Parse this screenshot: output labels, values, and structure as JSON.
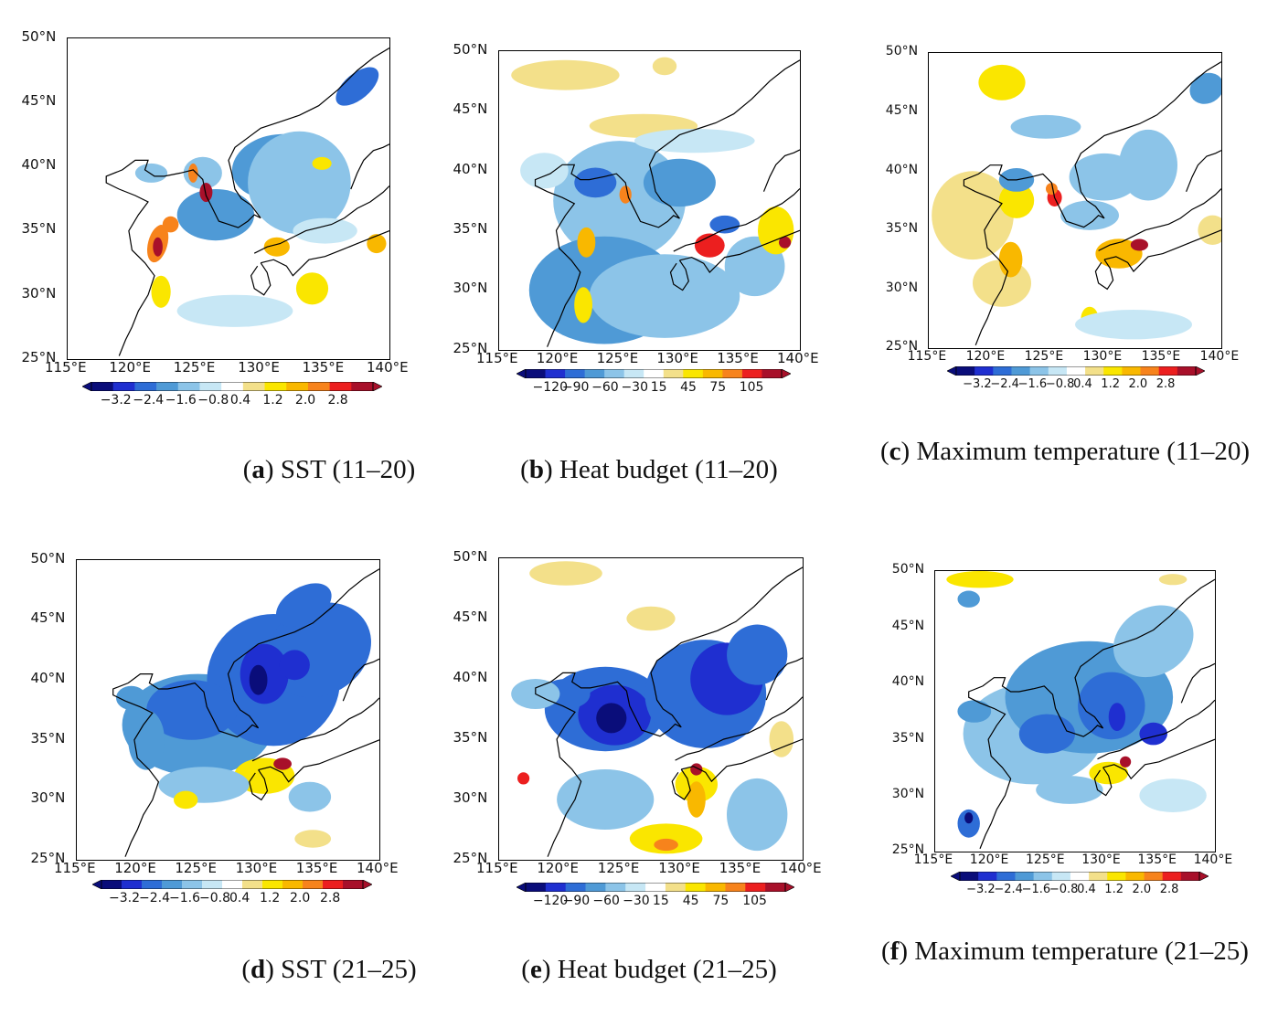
{
  "figure": {
    "panels": [
      {
        "id": "a",
        "caption_letter": "a",
        "caption_text": "SST (11–20)",
        "lat_labels": [
          "50°N",
          "45°N",
          "40°N",
          "35°N",
          "30°N",
          "25°N"
        ],
        "lon_labels": [
          "115°E",
          "120°E",
          "125°E",
          "130°E",
          "135°E",
          "140°E"
        ],
        "colorbar_labels": [
          "−3.2",
          "−2.4",
          "−1.6",
          "−0.8",
          "0.4",
          "1.2",
          "2.0",
          "2.8"
        ]
      },
      {
        "id": "b",
        "caption_letter": "b",
        "caption_text": "Heat budget (11–20)",
        "lat_labels": [
          "50°N",
          "45°N",
          "40°N",
          "35°N",
          "30°N",
          "25°N"
        ],
        "lon_labels": [
          "115°E",
          "120°E",
          "125°E",
          "130°E",
          "135°E",
          "140°E"
        ],
        "colorbar_labels": [
          "−120",
          "−90",
          "−60",
          "−30",
          "15",
          "45",
          "75",
          "105"
        ]
      },
      {
        "id": "c",
        "caption_letter": "c",
        "caption_text": "Maximum temperature (11–20)",
        "lat_labels": [
          "50°N",
          "45°N",
          "40°N",
          "35°N",
          "30°N",
          "25°N"
        ],
        "lon_labels": [
          "115°E",
          "120°E",
          "125°E",
          "130°E",
          "135°E",
          "140°E"
        ],
        "colorbar_labels": [
          "−3.2",
          "−2.4",
          "−1.6",
          "−0.8",
          "0.4",
          "1.2",
          "2.0",
          "2.8"
        ]
      },
      {
        "id": "d",
        "caption_letter": "d",
        "caption_text": "SST (21–25)",
        "lat_labels": [
          "50°N",
          "45°N",
          "40°N",
          "35°N",
          "30°N",
          "25°N"
        ],
        "lon_labels": [
          "115°E",
          "120°E",
          "125°E",
          "130°E",
          "135°E",
          "140°E"
        ],
        "colorbar_labels": [
          "−3.2",
          "−2.4",
          "−1.6",
          "−0.8",
          "0.4",
          "1.2",
          "2.0",
          "2.8"
        ]
      },
      {
        "id": "e",
        "caption_letter": "e",
        "caption_text": "Heat budget (21–25)",
        "lat_labels": [
          "50°N",
          "45°N",
          "40°N",
          "35°N",
          "30°N",
          "25°N"
        ],
        "lon_labels": [
          "115°E",
          "120°E",
          "125°E",
          "130°E",
          "135°E",
          "140°E"
        ],
        "colorbar_labels": [
          "−120",
          "−90",
          "−60",
          "−30",
          "15",
          "45",
          "75",
          "105"
        ]
      },
      {
        "id": "f",
        "caption_letter": "f",
        "caption_text": "Maximum temperature (21–25)",
        "lat_labels": [
          "50°N",
          "45°N",
          "40°N",
          "35°N",
          "30°N",
          "25°N"
        ],
        "lon_labels": [
          "115°E",
          "120°E",
          "125°E",
          "130°E",
          "135°E",
          "140°E"
        ],
        "colorbar_labels": [
          "−3.2",
          "−2.4",
          "−1.6",
          "−0.8",
          "0.4",
          "1.2",
          "2.0",
          "2.8"
        ]
      }
    ],
    "colors": {
      "neg": [
        "#0a0d7a",
        "#1f2fd0",
        "#2e6dd6",
        "#4f9ad6",
        "#8cc4e8",
        "#c7e7f5"
      ],
      "neutral": "#ffffff",
      "pos": [
        "#f3e08a",
        "#fae600",
        "#f9b800",
        "#f7831c",
        "#ec1f1f",
        "#a8102a"
      ],
      "coast": "#000000"
    }
  }
}
